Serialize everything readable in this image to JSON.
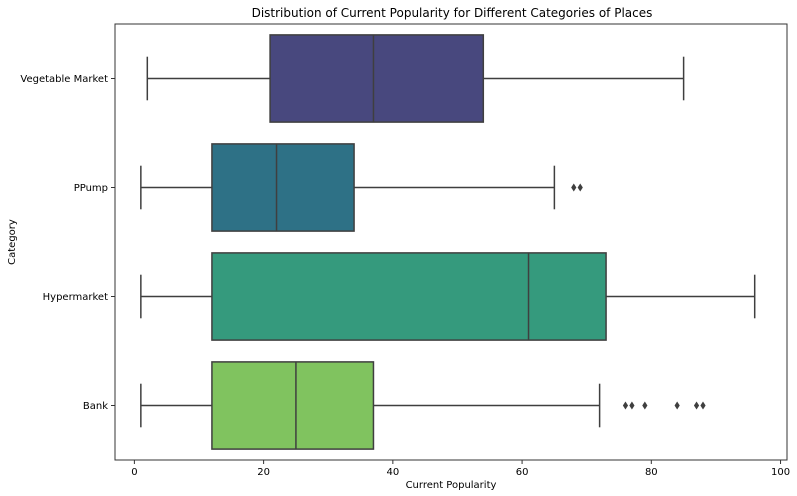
{
  "chart_data": {
    "type": "boxplot",
    "orientation": "horizontal",
    "title": "Distribution of Current Popularity for Different Categories of Places",
    "xlabel": "Current Popularity",
    "ylabel": "Category",
    "xlim": [
      -3,
      101
    ],
    "xticks": [
      0,
      20,
      40,
      60,
      80,
      100
    ],
    "grid": false,
    "legend": "none",
    "categories": [
      "Vegetable Market",
      "PPump",
      "Hypermarket",
      "Bank"
    ],
    "series": [
      {
        "category": "Vegetable Market",
        "min": 2,
        "q1": 21,
        "median": 37,
        "q3": 54,
        "max": 85,
        "outliers": [],
        "color": "#48487e"
      },
      {
        "category": "PPump",
        "min": 1,
        "q1": 12,
        "median": 22,
        "q3": 34,
        "max": 65,
        "outliers": [
          68,
          69
        ],
        "color": "#2e7186"
      },
      {
        "category": "Hypermarket",
        "min": 1,
        "q1": 12,
        "median": 61,
        "q3": 73,
        "max": 96,
        "outliers": [],
        "color": "#359a7d"
      },
      {
        "category": "Bank",
        "min": 1,
        "q1": 12,
        "median": 25,
        "q3": 37,
        "max": 72,
        "outliers": [
          76,
          77,
          79,
          84,
          87,
          88
        ],
        "color": "#80c35f"
      }
    ]
  }
}
